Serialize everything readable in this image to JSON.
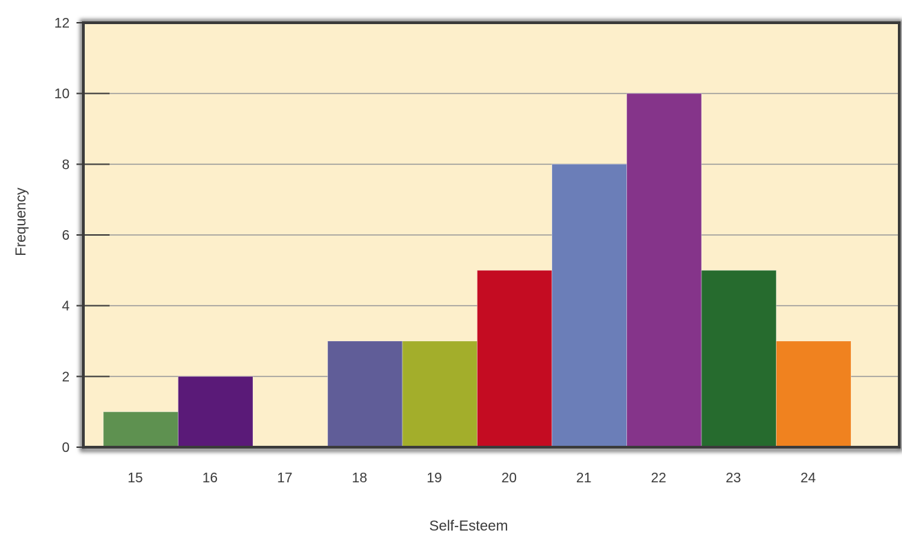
{
  "chart_data": {
    "type": "bar",
    "title": "",
    "xlabel": "Self-Esteem",
    "ylabel": "Frequency",
    "categories": [
      "15",
      "16",
      "17",
      "18",
      "19",
      "20",
      "21",
      "22",
      "23",
      "24"
    ],
    "values": [
      1,
      2,
      0,
      3,
      3,
      5,
      8,
      10,
      5,
      3
    ],
    "colors": [
      "#5e9150",
      "#5a1a78",
      "#fdefcb",
      "#605d98",
      "#a3ae2b",
      "#c40c22",
      "#6b7eb8",
      "#85348a",
      "#266b2e",
      "#f0821f"
    ],
    "ylim": [
      0,
      12
    ],
    "yticks": [
      "0",
      "2",
      "4",
      "6",
      "8",
      "10",
      "12"
    ],
    "grid": true,
    "plot_background": "#fdefcb",
    "grid_color": "#9a9a9a",
    "frame_color": "#3b3b3b"
  }
}
